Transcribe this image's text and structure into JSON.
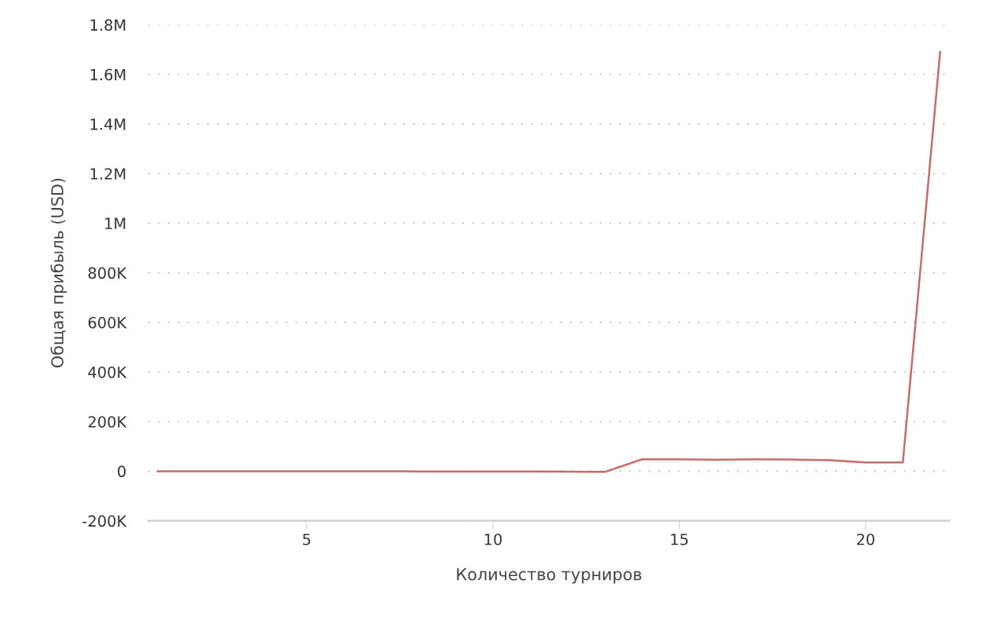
{
  "chart_data": {
    "type": "line",
    "xlabel": "Количество турниров",
    "ylabel": "Общая прибыль (USD)",
    "x": [
      1,
      2,
      3,
      4,
      5,
      6,
      7,
      8,
      9,
      10,
      11,
      12,
      13,
      14,
      15,
      16,
      17,
      18,
      19,
      20,
      21,
      22
    ],
    "series": [
      {
        "color": "#c86b6b",
        "values": [
          0,
          0,
          0,
          0,
          0,
          0,
          0,
          -1000,
          -1000,
          -1000,
          -1000,
          -2000,
          -3000,
          48000,
          48000,
          46000,
          48000,
          47000,
          45000,
          35000,
          35000,
          1690000
        ]
      }
    ],
    "xlim": [
      0.75,
      22.25
    ],
    "xticks": [
      5,
      10,
      15,
      20
    ],
    "ylim": [
      -200000,
      1800000
    ],
    "yticks": [
      {
        "value": -200000,
        "label": "-200K"
      },
      {
        "value": 0,
        "label": "0"
      },
      {
        "value": 200000,
        "label": "200K"
      },
      {
        "value": 400000,
        "label": "400K"
      },
      {
        "value": 600000,
        "label": "600K"
      },
      {
        "value": 800000,
        "label": "800K"
      },
      {
        "value": 1000000,
        "label": "1M"
      },
      {
        "value": 1200000,
        "label": "1.2M"
      },
      {
        "value": 1400000,
        "label": "1.4M"
      },
      {
        "value": 1600000,
        "label": "1.6M"
      },
      {
        "value": 1800000,
        "label": "1.8M"
      }
    ],
    "grid": "y",
    "marker": "none",
    "line_style": "solid",
    "legend": false
  }
}
